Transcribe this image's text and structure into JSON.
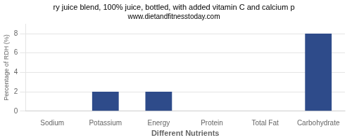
{
  "chart_data": {
    "type": "bar",
    "title": "ry juice blend, 100% juice, bottled, with added vitamin C and calcium p",
    "subtitle": "www.dietandfitnesstoday.com",
    "categories": [
      "Sodium",
      "Potassium",
      "Energy",
      "Protein",
      "Total Fat",
      "Carbohydrate"
    ],
    "values": [
      0.0,
      2.0,
      2.0,
      0.0,
      0.0,
      8.0
    ],
    "color": "#2e4b8a",
    "ylabel": "Percentage of RDH (%)",
    "xlabel": "Different Nutrients",
    "ylim": [
      0,
      9
    ],
    "yticks": [
      0,
      2,
      4,
      6,
      8
    ],
    "grid": true
  }
}
